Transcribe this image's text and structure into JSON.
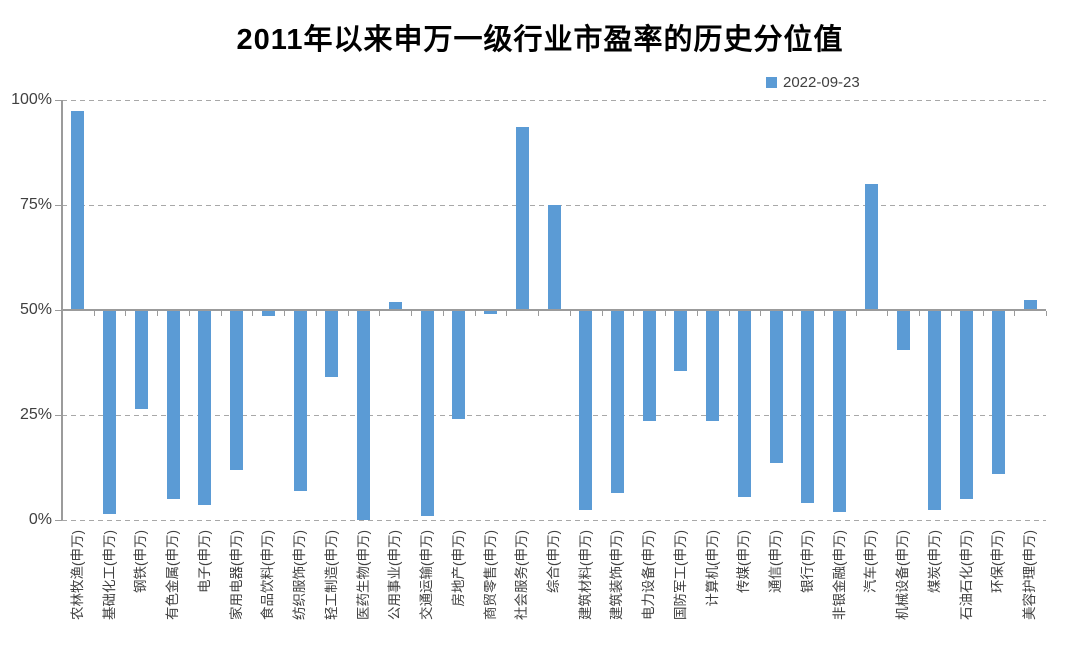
{
  "title": "2011年以来申万一级行业市盈率的历史分位值",
  "legend": {
    "label": "2022-09-23",
    "color": "#5B9BD5"
  },
  "colors": {
    "bar": "#5B9BD5",
    "axis": "#9b9b9b",
    "gridline": "#a8a8a8",
    "text": "#404040",
    "title_text": "#000000"
  },
  "chart_data": {
    "type": "bar",
    "title": "2011年以来申万一级行业市盈率的历史分位值",
    "xlabel": "",
    "ylabel": "",
    "ylim": [
      0,
      100
    ],
    "baseline": 50,
    "grid": "horizontal dashed at 0/25/75/100, solid category axis at 50",
    "legend_position": "top-right",
    "bar_color": "#5B9BD5",
    "ytick_values": [
      0,
      25,
      50,
      75,
      100
    ],
    "yticks": [
      "0%",
      "25%",
      "50%",
      "75%",
      "100%"
    ],
    "categories": [
      "农林牧渔(申万)",
      "基础化工(申万)",
      "钢铁(申万)",
      "有色金属(申万)",
      "电子(申万)",
      "家用电器(申万)",
      "食品饮料(申万)",
      "纺织服饰(申万)",
      "轻工制造(申万)",
      "医药生物(申万)",
      "公用事业(申万)",
      "交通运输(申万)",
      "房地产(申万)",
      "商贸零售(申万)",
      "社会服务(申万)",
      "综合(申万)",
      "建筑材料(申万)",
      "建筑装饰(申万)",
      "电力设备(申万)",
      "国防军工(申万)",
      "计算机(申万)",
      "传媒(申万)",
      "通信(申万)",
      "银行(申万)",
      "非银金融(申万)",
      "汽车(申万)",
      "机械设备(申万)",
      "煤炭(申万)",
      "石油石化(申万)",
      "环保(申万)",
      "美容护理(申万)"
    ],
    "series": [
      {
        "name": "2022-09-23",
        "values": [
          97.5,
          1.5,
          26.5,
          5,
          3.5,
          12,
          48.5,
          7,
          34,
          0,
          52,
          1,
          24,
          49,
          93.5,
          75,
          2.5,
          6.5,
          23.5,
          35.5,
          23.5,
          5.5,
          13.5,
          4,
          2,
          80,
          40.5,
          2.5,
          5,
          11,
          52.5
        ]
      }
    ]
  }
}
